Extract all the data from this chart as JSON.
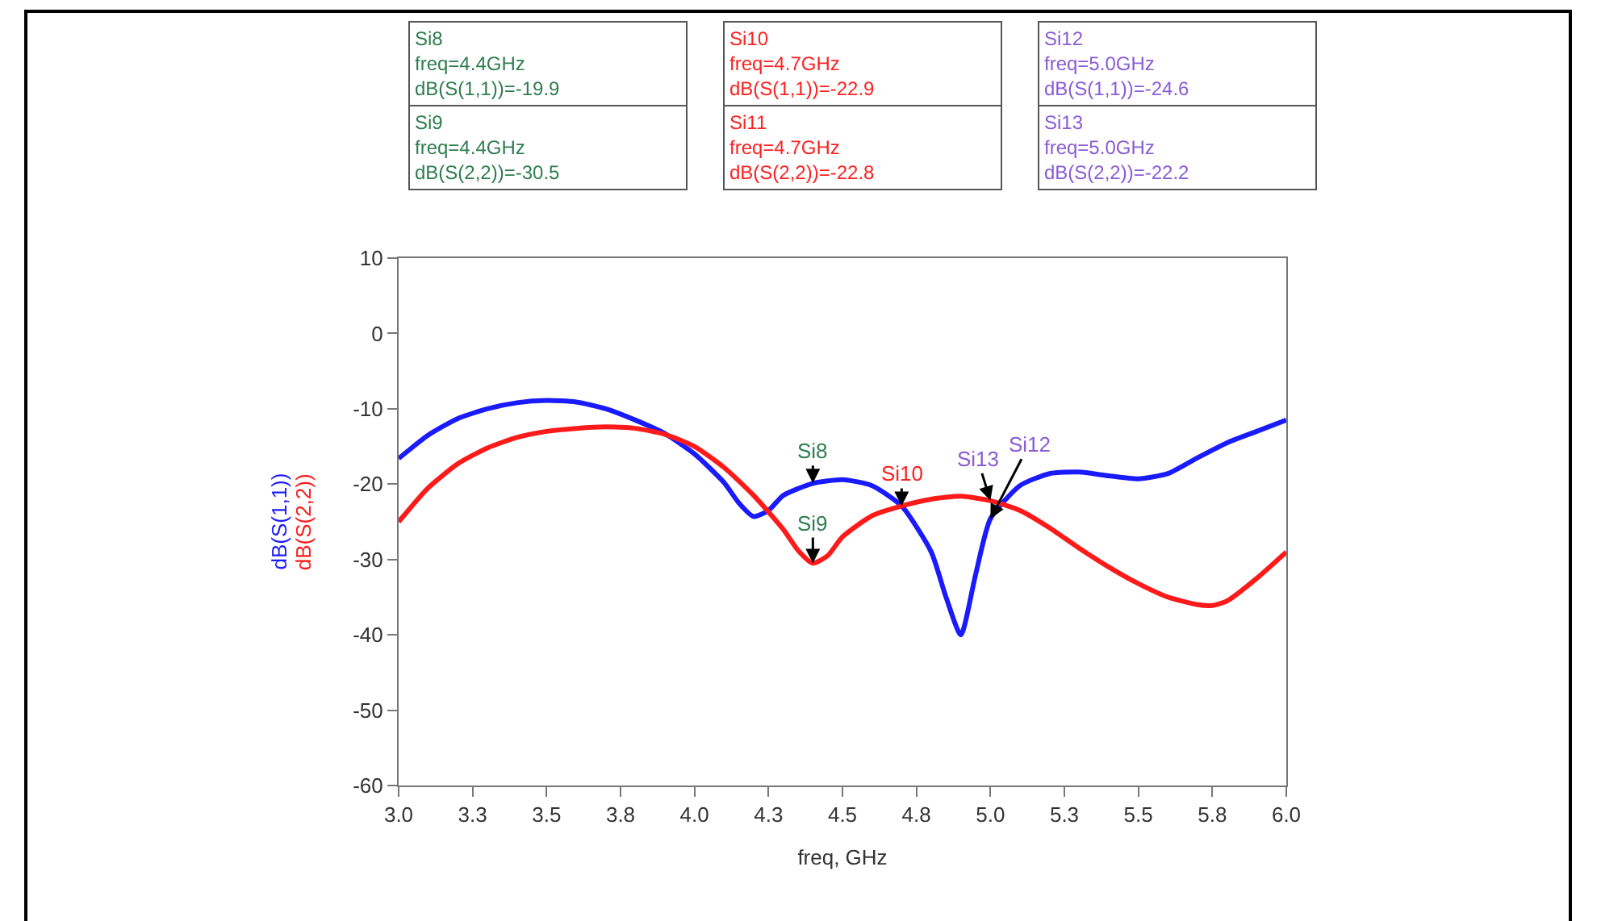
{
  "chart_data": {
    "type": "line",
    "xlabel": "freq, GHz",
    "xlim": [
      3.0,
      6.0
    ],
    "xticks": [
      {
        "value": 3.0,
        "label": "3.0"
      },
      {
        "value": 3.25,
        "label": "3.3"
      },
      3.5,
      {
        "value": 3.75,
        "label": "3.8"
      },
      {
        "value": 4.0,
        "label": "4.0"
      },
      {
        "value": 4.25,
        "label": "4.3"
      },
      4.5,
      {
        "value": 4.75,
        "label": "4.8"
      },
      {
        "value": 5.0,
        "label": "5.0"
      },
      {
        "value": 5.25,
        "label": "5.3"
      },
      5.5,
      {
        "value": 5.75,
        "label": "5.8"
      },
      {
        "value": 6.0,
        "label": "6.0"
      }
    ],
    "ylim": [
      -60,
      10
    ],
    "yticks": [
      10,
      0,
      -10,
      -20,
      -30,
      -40,
      -50,
      -60
    ],
    "grid": false,
    "legend": false,
    "marker": "none",
    "line_style": "solid",
    "series": [
      {
        "name": "dB(S(1,1))",
        "color": "#1a1aff",
        "x": [
          3.0,
          3.1,
          3.2,
          3.3,
          3.4,
          3.5,
          3.6,
          3.7,
          3.8,
          3.9,
          4.0,
          4.1,
          4.15,
          4.2,
          4.25,
          4.3,
          4.4,
          4.5,
          4.6,
          4.7,
          4.8,
          4.85,
          4.9,
          4.95,
          5.0,
          5.1,
          5.2,
          5.3,
          5.4,
          5.5,
          5.6,
          5.7,
          5.8,
          5.9,
          6.0
        ],
        "values": [
          -16.6,
          -13.5,
          -11.3,
          -10.0,
          -9.2,
          -8.9,
          -9.1,
          -10.0,
          -11.5,
          -13.3,
          -16.0,
          -19.8,
          -22.5,
          -24.3,
          -23.5,
          -21.5,
          -19.9,
          -19.4,
          -20.2,
          -22.9,
          -29.0,
          -35.0,
          -40.0,
          -32.0,
          -24.6,
          -20.2,
          -18.6,
          -18.4,
          -18.9,
          -19.3,
          -18.6,
          -16.5,
          -14.5,
          -13.0,
          -11.5
        ]
      },
      {
        "name": "dB(S(2,2))",
        "color": "#ff1a1a",
        "x": [
          3.0,
          3.1,
          3.2,
          3.3,
          3.4,
          3.5,
          3.6,
          3.7,
          3.8,
          3.9,
          4.0,
          4.1,
          4.2,
          4.3,
          4.35,
          4.4,
          4.45,
          4.5,
          4.6,
          4.7,
          4.8,
          4.9,
          5.0,
          5.1,
          5.2,
          5.3,
          5.4,
          5.5,
          5.6,
          5.7,
          5.75,
          5.8,
          5.9,
          6.0
        ],
        "values": [
          -25.0,
          -20.5,
          -17.3,
          -15.2,
          -13.8,
          -13.0,
          -12.6,
          -12.4,
          -12.6,
          -13.4,
          -15.0,
          -17.8,
          -21.5,
          -26.0,
          -28.8,
          -30.5,
          -29.5,
          -27.0,
          -24.2,
          -22.9,
          -22.0,
          -21.6,
          -22.2,
          -23.5,
          -25.8,
          -28.5,
          -31.0,
          -33.2,
          -35.0,
          -36.0,
          -36.1,
          -35.5,
          -32.5,
          -29.0
        ]
      }
    ],
    "annotations": [
      "Si8\nfreq=4.4GHz\ndB(S(1,1))=-19.9",
      "Si9\nfreq=4.4GHz\ndB(S(2,2))=-30.5",
      "Si10\nfreq=4.7GHz\ndB(S(1,1))=-22.9",
      "Si11\nfreq=4.7GHz\ndB(S(2,2))=-22.8",
      "Si12\nfreq=5.0GHz\ndB(S(1,1))=-24.6",
      "Si13\nfreq=5.0GHz\ndB(S(2,2))=-22.2",
      {
        "text": "Si8",
        "x": 4.4,
        "y": -19.9
      },
      {
        "text": "Si9",
        "x": 4.4,
        "y": -30.5
      },
      {
        "text": "Si10",
        "x": 4.7,
        "y": -22.9
      },
      {
        "text": "Si12",
        "x": 5.0,
        "y": -24.6
      },
      {
        "text": "Si13",
        "x": 5.0,
        "y": -22.2
      }
    ]
  }
}
